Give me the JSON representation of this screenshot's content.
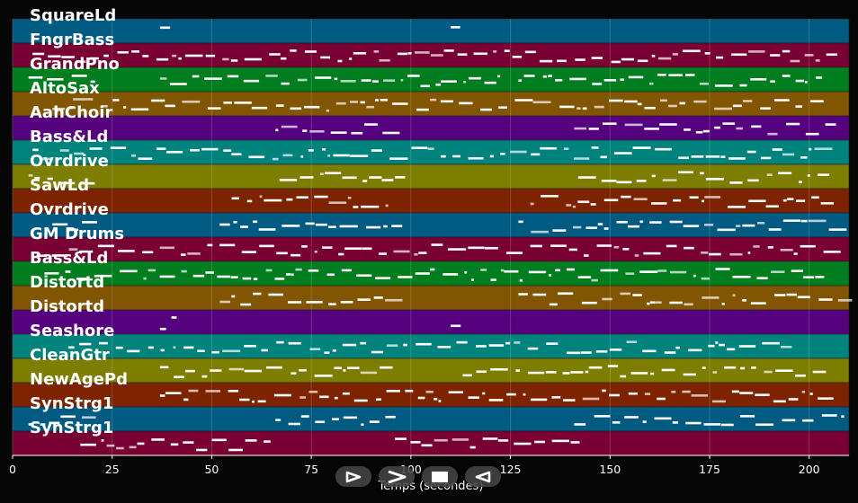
{
  "xaxis": {
    "label": "Temps (secondes)",
    "min": 0,
    "max": 210,
    "ticks": [
      0,
      25,
      50,
      75,
      100,
      125,
      150,
      175,
      200
    ]
  },
  "tracks": [
    {
      "name": "SquareLd",
      "color": "#005a82"
    },
    {
      "name": "FngrBass",
      "color": "#780032"
    },
    {
      "name": "GrandPno",
      "color": "#007d1e"
    },
    {
      "name": "AltoSax",
      "color": "#825500"
    },
    {
      "name": "AahChoir",
      "color": "#55007d"
    },
    {
      "name": "Bass&Ld",
      "color": "#00827d"
    },
    {
      "name": "Ovrdrive",
      "color": "#7d7d00"
    },
    {
      "name": "SawLd",
      "color": "#7d2300"
    },
    {
      "name": "Ovrdrive",
      "color": "#005a82"
    },
    {
      "name": "GM Drums",
      "color": "#780032"
    },
    {
      "name": "Bass&Ld",
      "color": "#007d1e"
    },
    {
      "name": "Distortd",
      "color": "#825500"
    },
    {
      "name": "Distortd",
      "color": "#55007d"
    },
    {
      "name": "Seashore",
      "color": "#00827d"
    },
    {
      "name": "CleanGtr",
      "color": "#7d7d00"
    },
    {
      "name": "NewAgePd",
      "color": "#7d2300"
    },
    {
      "name": "SynStrg1",
      "color": "#005a82"
    },
    {
      "name": "SynStrg1",
      "color": "#780032"
    }
  ],
  "controls": [
    {
      "id": "play",
      "icon": "play-outline-icon"
    },
    {
      "id": "forward",
      "icon": "chevron-right-icon"
    },
    {
      "id": "stop",
      "icon": "stop-square-icon"
    },
    {
      "id": "back",
      "icon": "play-reverse-outline-icon"
    }
  ]
}
